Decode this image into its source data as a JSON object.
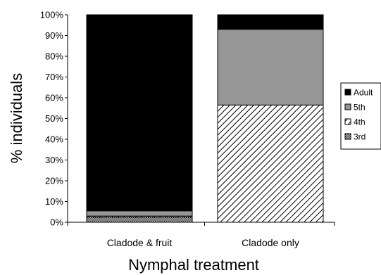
{
  "chart_data": {
    "type": "bar",
    "stacked": true,
    "percent": true,
    "categories": [
      "Cladode & fruit",
      "Cladode only"
    ],
    "series": [
      {
        "name": "3rd",
        "values": [
          2.5,
          0
        ],
        "color": "#ffffff",
        "pattern": "checker"
      },
      {
        "name": "4th",
        "values": [
          0.5,
          56.5
        ],
        "color": "#ffffff",
        "pattern": "diagonal-hatch"
      },
      {
        "name": "5th",
        "values": [
          2.5,
          36.5
        ],
        "color": "#969696",
        "pattern": "solid"
      },
      {
        "name": "Adult",
        "values": [
          94.5,
          7
        ],
        "color": "#000000",
        "pattern": "solid"
      }
    ],
    "xlabel": "Nymphal treatment",
    "ylabel": "% individuals",
    "ylim": [
      0,
      100
    ],
    "yticks": [
      "0%",
      "10%",
      "20%",
      "30%",
      "40%",
      "50%",
      "60%",
      "70%",
      "80%",
      "90%",
      "100%"
    ],
    "grid": false,
    "legend_position": "right"
  }
}
